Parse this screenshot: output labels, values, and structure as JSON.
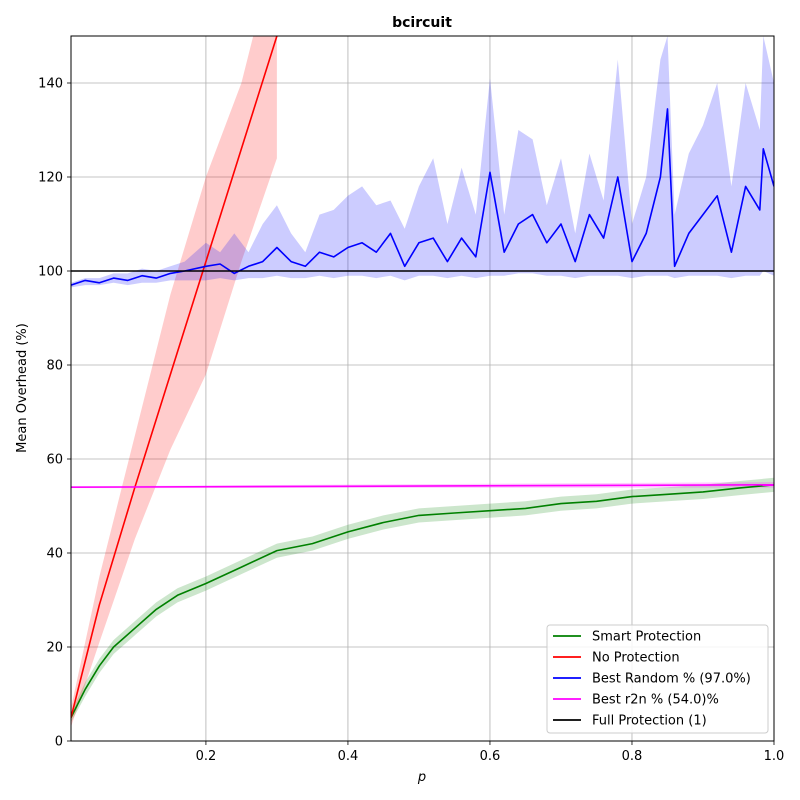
{
  "chart_data": {
    "type": "line",
    "title": "bcircuit",
    "xlabel": "p",
    "ylabel": "Mean Overhead (%)",
    "xlim": [
      0.01,
      1.0
    ],
    "ylim": [
      0,
      150
    ],
    "xticks": [
      0.2,
      0.4,
      0.6,
      0.8,
      1.0
    ],
    "xtick_labels": [
      "0.2",
      "0.4",
      "0.6",
      "0.8",
      "1.0"
    ],
    "yticks": [
      0,
      20,
      40,
      60,
      80,
      100,
      120,
      140
    ],
    "ytick_labels": [
      "0",
      "20",
      "40",
      "60",
      "80",
      "100",
      "120",
      "140"
    ],
    "grid": true,
    "legend_position": "bottom-right",
    "series": [
      {
        "name": "Smart Protection",
        "color": "#008000",
        "fill": "rgba(0,128,0,0.2)",
        "x": [
          0.01,
          0.03,
          0.05,
          0.07,
          0.1,
          0.13,
          0.16,
          0.2,
          0.25,
          0.3,
          0.35,
          0.4,
          0.45,
          0.5,
          0.55,
          0.6,
          0.65,
          0.7,
          0.75,
          0.8,
          0.85,
          0.9,
          0.95,
          1.0
        ],
        "y": [
          5,
          11,
          16,
          20,
          24,
          28,
          31,
          33.5,
          37,
          40.5,
          42,
          44.5,
          46.5,
          48,
          48.5,
          49,
          49.5,
          50.5,
          51,
          52,
          52.5,
          53,
          53.8,
          54.5
        ],
        "lower": [
          4,
          9.5,
          14.5,
          18.5,
          22.5,
          26.5,
          29.5,
          32,
          35.5,
          39,
          40.5,
          43,
          45,
          46.5,
          47,
          47.5,
          48,
          49,
          49.5,
          50.5,
          51,
          51.5,
          52.3,
          53
        ],
        "upper": [
          6,
          12.5,
          17.5,
          21.5,
          25.5,
          29.5,
          32.5,
          35,
          38.5,
          42,
          43.5,
          46,
          48,
          49.5,
          50,
          50.5,
          51,
          52,
          52.5,
          53.5,
          54,
          54.5,
          55.3,
          56
        ]
      },
      {
        "name": "No Protection",
        "color": "#ff0000",
        "fill": "rgba(255,0,0,0.2)",
        "x": [
          0.01,
          0.05,
          0.1,
          0.15,
          0.2,
          0.25,
          0.3
        ],
        "y": [
          5,
          29,
          54,
          78,
          102,
          126,
          150
        ],
        "lower": [
          3,
          21,
          43,
          62,
          78,
          102,
          124
        ],
        "upper": [
          7,
          35,
          65,
          95,
          120,
          140,
          170
        ]
      },
      {
        "name": "Best Random % (97.0%)",
        "color": "#0000ff",
        "fill": "rgba(0,0,255,0.2)",
        "x": [
          0.01,
          0.03,
          0.05,
          0.07,
          0.09,
          0.11,
          0.13,
          0.15,
          0.17,
          0.2,
          0.22,
          0.24,
          0.26,
          0.28,
          0.3,
          0.32,
          0.34,
          0.36,
          0.38,
          0.4,
          0.42,
          0.44,
          0.46,
          0.48,
          0.5,
          0.52,
          0.54,
          0.56,
          0.58,
          0.6,
          0.62,
          0.64,
          0.66,
          0.68,
          0.7,
          0.72,
          0.74,
          0.76,
          0.78,
          0.8,
          0.82,
          0.84,
          0.85,
          0.86,
          0.88,
          0.9,
          0.92,
          0.94,
          0.96,
          0.98,
          0.985,
          1.0
        ],
        "y": [
          97,
          98,
          97.5,
          98.5,
          98,
          99,
          98.5,
          99.5,
          100,
          101,
          101.5,
          99.5,
          101,
          102,
          105,
          102,
          101,
          104,
          103,
          105,
          106,
          104,
          108,
          101,
          106,
          107,
          102,
          107,
          103,
          121,
          104,
          110,
          112,
          106,
          110,
          102,
          112,
          107,
          120,
          102,
          108,
          120,
          134.5,
          101,
          108,
          112,
          116,
          104,
          118,
          113,
          126,
          118
        ],
        "lower": [
          96.5,
          97,
          97,
          97.5,
          97,
          97.5,
          97.5,
          98,
          98,
          98,
          98.5,
          98,
          98.5,
          98.5,
          99,
          98.5,
          98.5,
          99,
          98.5,
          99,
          99,
          98.5,
          99,
          98,
          99,
          99,
          98.5,
          99,
          98.5,
          99,
          99,
          99.5,
          99.5,
          99,
          99,
          98.5,
          99,
          99,
          99,
          98.5,
          99,
          99,
          99,
          98.5,
          99,
          99,
          99,
          98.5,
          99,
          99,
          100,
          99
        ],
        "upper": [
          97.5,
          98.5,
          98.5,
          99.5,
          99.5,
          100.5,
          100,
          101,
          102,
          106,
          104,
          108,
          104,
          110,
          114,
          108,
          104,
          112,
          113,
          116,
          118,
          114,
          115,
          109,
          118,
          124,
          110,
          122,
          112,
          141,
          112,
          130,
          128,
          114,
          124,
          108,
          125,
          115,
          145,
          110,
          120,
          145,
          150,
          112,
          125,
          131,
          140,
          118,
          140,
          130,
          150,
          140
        ]
      },
      {
        "name": "Best r2n % (54.0)%",
        "color": "#ff00ff",
        "fill": "rgba(255,0,255,0.2)",
        "x": [
          0.01,
          1.0
        ],
        "y": [
          54.0,
          54.5
        ],
        "lower": [
          53.8,
          53.9
        ],
        "upper": [
          54.2,
          55.1
        ]
      },
      {
        "name": "Full Protection (1)",
        "color": "#000000",
        "fill": null,
        "x": [
          0.01,
          1.0
        ],
        "y": [
          100,
          100
        ],
        "lower": null,
        "upper": null
      }
    ]
  }
}
